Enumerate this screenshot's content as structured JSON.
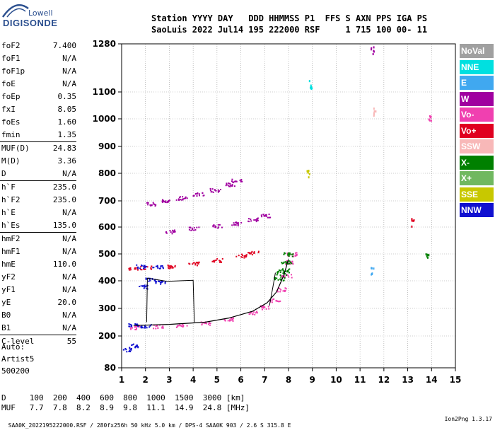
{
  "logo": {
    "line1": "Lowell",
    "line2": "DIGISONDE"
  },
  "header": {
    "line1": "Station YYYY DAY   DDD HHMMSS P1  FFS S AXN PPS IGA PS",
    "line2": "SaoLuis 2022 Jul14 195 222000 RSF     1 715 100 00- 11"
  },
  "params": [
    {
      "label": "foF2",
      "value": "7.400"
    },
    {
      "label": "foF1",
      "value": "N/A"
    },
    {
      "label": "foF1p",
      "value": "N/A"
    },
    {
      "label": "foE",
      "value": "N/A"
    },
    {
      "label": "foEp",
      "value": "0.35"
    },
    {
      "label": "fxI",
      "value": "8.05"
    },
    {
      "label": "foEs",
      "value": "1.60"
    },
    {
      "label": "fmin",
      "value": "1.35"
    },
    {
      "label": "MUF(D)",
      "value": "24.83"
    },
    {
      "label": "M(D)",
      "value": "3.36"
    },
    {
      "label": "D",
      "value": "N/A"
    },
    {
      "label": "h`F",
      "value": "235.0"
    },
    {
      "label": "h`F2",
      "value": "235.0"
    },
    {
      "label": "h`E",
      "value": "N/A"
    },
    {
      "label": "h`Es",
      "value": "135.0"
    },
    {
      "label": "hmF2",
      "value": "N/A"
    },
    {
      "label": "hmF1",
      "value": "N/A"
    },
    {
      "label": "hmE",
      "value": "110.0"
    },
    {
      "label": "yF2",
      "value": "N/A"
    },
    {
      "label": "yF1",
      "value": "N/A"
    },
    {
      "label": "yE",
      "value": "20.0"
    },
    {
      "label": "B0",
      "value": "N/A"
    },
    {
      "label": "B1",
      "value": "N/A"
    },
    {
      "label": "C-level",
      "value": "55"
    }
  ],
  "auto": {
    "line1": "Auto:",
    "line2": "Artist5",
    "line3": "500200"
  },
  "muf_table": {
    "line1": "D     100  200  400  600  800  1000  1500  3000 [km]",
    "line2": "MUF   7.7  7.8  8.2  8.9  9.8  11.1  14.9  24.8 [MHz]"
  },
  "footer": {
    "left": "SAA0K_2022195222000.RSF / 280fx256h 50 kHz 5.0 km / DPS-4 SAA0K 903 / 2.6 S 315.8 E",
    "right": "Ion2Png 1.3.17"
  },
  "legend": [
    {
      "label": "NoVal",
      "color": "#a0a0a0"
    },
    {
      "label": "NNE",
      "color": "#00e0e0"
    },
    {
      "label": "E",
      "color": "#40a8f0"
    },
    {
      "label": "W",
      "color": "#a000a0"
    },
    {
      "label": "Vo-",
      "color": "#f040b0"
    },
    {
      "label": "Vo+",
      "color": "#e00020"
    },
    {
      "label": "SSW",
      "color": "#f8b8b8"
    },
    {
      "label": "X-",
      "color": "#008000"
    },
    {
      "label": "X+",
      "color": "#70b860"
    },
    {
      "label": "SSE",
      "color": "#c8c800"
    },
    {
      "label": "NNW",
      "color": "#1010d0"
    }
  ],
  "chart_data": {
    "type": "scatter",
    "title": "",
    "xlabel": "",
    "ylabel": "",
    "x_ticks": [
      "1",
      "2",
      "3",
      "4",
      "5",
      "6",
      "7",
      "8",
      "9",
      "10",
      "11",
      "12",
      "13",
      "14",
      "15"
    ],
    "y_ticks": [
      "80",
      "200",
      "300",
      "400",
      "500",
      "600",
      "700",
      "800",
      "900",
      "1000",
      "1100",
      "1280"
    ],
    "xlim": [
      1,
      15
    ],
    "ylim": [
      80,
      1280
    ],
    "grid": true,
    "series": [
      {
        "name": "Vo-",
        "color": "#f040b0",
        "points": [
          [
            1.5,
            232
          ],
          [
            2.5,
            236
          ],
          [
            3.5,
            240
          ],
          [
            4.5,
            248
          ],
          [
            5.5,
            262
          ],
          [
            6.5,
            285
          ],
          [
            7.0,
            305
          ],
          [
            7.4,
            330
          ],
          [
            7.7,
            370
          ],
          [
            7.9,
            420
          ],
          [
            8.0,
            470
          ],
          [
            8.1,
            500
          ]
        ]
      },
      {
        "name": "W",
        "color": "#a000a0",
        "points": [
          [
            2.2,
            690
          ],
          [
            2.8,
            700
          ],
          [
            3.5,
            712
          ],
          [
            4.2,
            725
          ],
          [
            4.9,
            740
          ],
          [
            5.5,
            760
          ],
          [
            5.8,
            775
          ],
          [
            3.0,
            585
          ],
          [
            4.0,
            595
          ],
          [
            5.0,
            605
          ],
          [
            5.8,
            615
          ],
          [
            6.5,
            630
          ],
          [
            7.0,
            645
          ]
        ]
      },
      {
        "name": "Vo+",
        "color": "#e00020",
        "points": [
          [
            1.5,
            448
          ],
          [
            2.0,
            450
          ],
          [
            3.0,
            455
          ],
          [
            4.0,
            465
          ],
          [
            5.0,
            478
          ],
          [
            6.0,
            495
          ],
          [
            6.5,
            505
          ]
        ]
      },
      {
        "name": "NNW",
        "color": "#1010d0",
        "points": [
          [
            1.5,
            240
          ],
          [
            2.0,
            238
          ],
          [
            1.8,
            455
          ],
          [
            2.5,
            452
          ],
          [
            1.5,
            165
          ],
          [
            1.2,
            150
          ],
          [
            1.9,
            380
          ],
          [
            2.2,
            405
          ],
          [
            2.6,
            396
          ]
        ]
      },
      {
        "name": "X-",
        "color": "#008000",
        "points": [
          [
            7.6,
            410
          ],
          [
            7.7,
            430
          ],
          [
            7.8,
            440
          ],
          [
            7.9,
            470
          ],
          [
            8.0,
            500
          ]
        ]
      }
    ]
  }
}
